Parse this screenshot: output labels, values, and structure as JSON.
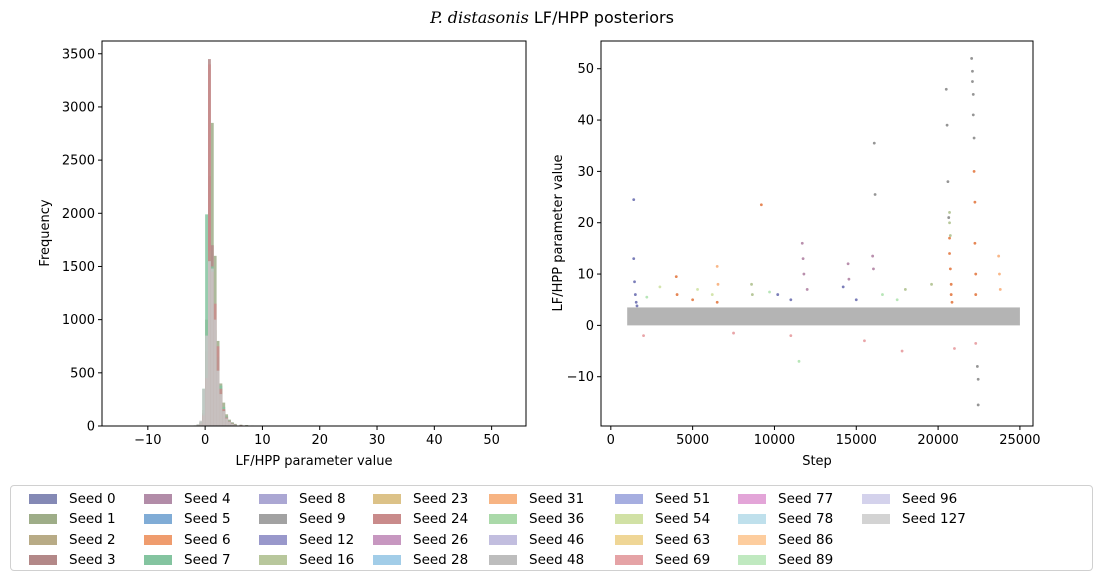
{
  "figure": {
    "title_italic": "P. distasonis",
    "title_rest": " LF/HPP posteriors"
  },
  "chart_data": [
    {
      "type": "bar",
      "subtype": "overlaid-histogram",
      "xlabel": "LF/HPP parameter value",
      "ylabel": "Frequency",
      "xlim": [
        -18,
        56
      ],
      "ylim": [
        0,
        3620
      ],
      "xticks": [
        -10,
        0,
        10,
        20,
        30,
        40,
        50
      ],
      "yticks": [
        0,
        500,
        1000,
        1500,
        2000,
        2500,
        3000,
        3500
      ],
      "bin_width": 0.5,
      "categories": [
        -2.5,
        -2.0,
        -1.5,
        -1.0,
        -0.5,
        0.0,
        0.5,
        1.0,
        1.5,
        2.0,
        2.5,
        3.0,
        3.5,
        4.0,
        4.5,
        5.0,
        6.0,
        7.0,
        8.0,
        9.0,
        10.0,
        11.0
      ],
      "series": [
        {
          "name": "Seed 1",
          "color": "#9ead88",
          "values": [
            0,
            5,
            15,
            40,
            150,
            1000,
            2350,
            2850,
            1600,
            800,
            400,
            220,
            110,
            60,
            35,
            20,
            12,
            8,
            5,
            3,
            2,
            1
          ]
        },
        {
          "name": "Seed 3",
          "color": "#b38888",
          "values": [
            0,
            0,
            10,
            30,
            120,
            700,
            3450,
            1700,
            1000,
            500,
            300,
            150,
            90,
            50,
            30,
            15,
            10,
            6,
            4,
            2,
            1,
            0
          ]
        },
        {
          "name": "Seed 7",
          "color": "#84c4a0",
          "values": [
            0,
            4,
            12,
            35,
            350,
            1990,
            1650,
            1500,
            900,
            650,
            380,
            180,
            90,
            50,
            30,
            18,
            10,
            6,
            3,
            2,
            1,
            0
          ]
        },
        {
          "name": "Seed 24",
          "color": "#c98b8b",
          "values": [
            0,
            0,
            8,
            25,
            100,
            450,
            3400,
            1450,
            1150,
            750,
            350,
            160,
            80,
            45,
            25,
            14,
            9,
            5,
            3,
            2,
            1,
            0
          ]
        },
        {
          "name": "Seed 127",
          "color": "#c8c8c8",
          "values": [
            2,
            6,
            15,
            50,
            350,
            850,
            1550,
            1480,
            1000,
            520,
            300,
            140,
            70,
            40,
            20,
            10,
            6,
            3,
            2,
            1,
            0,
            0
          ]
        }
      ]
    },
    {
      "type": "scatter",
      "xlabel": "Step",
      "ylabel": "LF/HPP parameter value",
      "xlim": [
        -600,
        25800
      ],
      "ylim": [
        -19.6,
        55.4
      ],
      "xticks": [
        0,
        5000,
        10000,
        15000,
        20000,
        25000
      ],
      "yticks": [
        -10,
        0,
        10,
        20,
        30,
        40,
        50
      ],
      "band": {
        "x": [
          1000,
          25000
        ],
        "y": [
          0,
          3.5
        ],
        "color": "#b4b4b4"
      },
      "series": [
        {
          "name": "Seed 0",
          "color": "#5a5ea8",
          "points": [
            [
              1400,
              24.5
            ],
            [
              1400,
              13
            ],
            [
              1450,
              8.5
            ],
            [
              1500,
              6
            ],
            [
              1550,
              4.5
            ],
            [
              1600,
              3.8
            ],
            [
              10200,
              6
            ],
            [
              11000,
              5
            ],
            [
              14200,
              7.5
            ],
            [
              15000,
              5
            ]
          ]
        },
        {
          "name": "Seed 6",
          "color": "#e0692c",
          "points": [
            [
              4000,
              9.5
            ],
            [
              4050,
              6
            ],
            [
              5000,
              5
            ],
            [
              6500,
              4.5
            ],
            [
              9200,
              23.5
            ],
            [
              20700,
              17
            ],
            [
              20700,
              14
            ],
            [
              20750,
              11
            ],
            [
              20800,
              8
            ],
            [
              20800,
              6
            ],
            [
              20850,
              4.5
            ],
            [
              22200,
              30
            ],
            [
              22250,
              24
            ],
            [
              22250,
              16
            ],
            [
              22300,
              10
            ],
            [
              22300,
              6
            ]
          ]
        },
        {
          "name": "Seed 9",
          "color": "#7b7b7b",
          "points": [
            [
              20500,
              46
            ],
            [
              20550,
              39
            ],
            [
              20600,
              28
            ],
            [
              20650,
              21
            ],
            [
              16100,
              35.5
            ],
            [
              16150,
              25.5
            ],
            [
              22050,
              52
            ],
            [
              22100,
              49.5
            ],
            [
              22100,
              47.5
            ],
            [
              22150,
              45
            ],
            [
              22150,
              41
            ],
            [
              22200,
              36.5
            ],
            [
              22400,
              -8
            ],
            [
              22450,
              -10.5
            ],
            [
              22450,
              -15.5
            ]
          ]
        },
        {
          "name": "Seed 4",
          "color": "#a87399",
          "points": [
            [
              11700,
              16
            ],
            [
              11750,
              13
            ],
            [
              11800,
              10
            ],
            [
              12000,
              7
            ],
            [
              14500,
              12
            ],
            [
              14550,
              9
            ],
            [
              16000,
              13.5
            ],
            [
              16050,
              11
            ]
          ]
        },
        {
          "name": "Seed 16",
          "color": "#a6ba82",
          "points": [
            [
              8600,
              8
            ],
            [
              8650,
              6
            ],
            [
              20700,
              22
            ],
            [
              20700,
              20
            ],
            [
              20750,
              17.5
            ],
            [
              18000,
              7
            ],
            [
              19600,
              8
            ]
          ]
        },
        {
          "name": "Seed 31",
          "color": "#f7a56a",
          "points": [
            [
              23700,
              13.5
            ],
            [
              23750,
              10
            ],
            [
              23800,
              7
            ],
            [
              6500,
              11.5
            ],
            [
              6550,
              8
            ]
          ]
        },
        {
          "name": "Seed 54",
          "color": "#c9de98",
          "points": [
            [
              3000,
              7.5
            ],
            [
              5300,
              7
            ],
            [
              6200,
              6
            ]
          ]
        },
        {
          "name": "Seed 69",
          "color": "#e38f92",
          "points": [
            [
              2000,
              -2
            ],
            [
              7500,
              -1.5
            ],
            [
              11000,
              -2
            ],
            [
              17800,
              -5
            ],
            [
              15500,
              -3
            ],
            [
              21000,
              -4.5
            ],
            [
              22300,
              -3.5
            ]
          ]
        },
        {
          "name": "Seed 89",
          "color": "#a6e0a6",
          "points": [
            [
              11500,
              -7
            ],
            [
              2200,
              5.5
            ],
            [
              9700,
              6.5
            ],
            [
              16600,
              6
            ],
            [
              17500,
              5
            ]
          ]
        }
      ]
    }
  ],
  "legend": {
    "items": [
      {
        "label": "Seed 0",
        "color": "#8489b5"
      },
      {
        "label": "Seed 1",
        "color": "#9ead88"
      },
      {
        "label": "Seed 2",
        "color": "#b8ab86"
      },
      {
        "label": "Seed 3",
        "color": "#b38888"
      },
      {
        "label": "Seed 4",
        "color": "#b28ca8"
      },
      {
        "label": "Seed 5",
        "color": "#80acd6"
      },
      {
        "label": "Seed 6",
        "color": "#ef9c6e"
      },
      {
        "label": "Seed 7",
        "color": "#84c4a0"
      },
      {
        "label": "Seed 8",
        "color": "#aba7d3"
      },
      {
        "label": "Seed 9",
        "color": "#a2a2a2"
      },
      {
        "label": "Seed 12",
        "color": "#9998cb"
      },
      {
        "label": "Seed 16",
        "color": "#b8c79c"
      },
      {
        "label": "Seed 23",
        "color": "#dcc288"
      },
      {
        "label": "Seed 24",
        "color": "#c98b8b"
      },
      {
        "label": "Seed 26",
        "color": "#c797c0"
      },
      {
        "label": "Seed 28",
        "color": "#a2cde8"
      },
      {
        "label": "Seed 31",
        "color": "#f7b483"
      },
      {
        "label": "Seed 36",
        "color": "#aad9a9"
      },
      {
        "label": "Seed 46",
        "color": "#c2bedf"
      },
      {
        "label": "Seed 48",
        "color": "#bdbdbd"
      },
      {
        "label": "Seed 51",
        "color": "#a6aee0"
      },
      {
        "label": "Seed 54",
        "color": "#d1e1a5"
      },
      {
        "label": "Seed 63",
        "color": "#efd696"
      },
      {
        "label": "Seed 69",
        "color": "#e5a3a6"
      },
      {
        "label": "Seed 77",
        "color": "#e3a5d8"
      },
      {
        "label": "Seed 78",
        "color": "#bfe0ec"
      },
      {
        "label": "Seed 86",
        "color": "#fdcd9e"
      },
      {
        "label": "Seed 89",
        "color": "#c0e9c0"
      },
      {
        "label": "Seed 96",
        "color": "#d4d2ec"
      },
      {
        "label": "Seed 127",
        "color": "#d3d3d3"
      }
    ]
  }
}
